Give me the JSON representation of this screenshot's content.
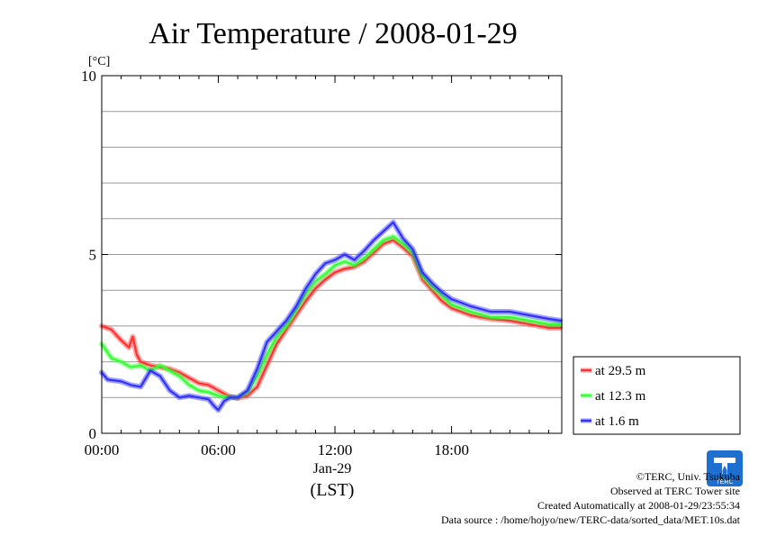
{
  "chart_data": {
    "type": "line",
    "title": "Air Temperature / 2008-01-29",
    "ylabel": "[°C]",
    "xlabel_date": "Jan-29",
    "xlabel_zone": "(LST)",
    "x_unit": "hours",
    "xlim": [
      0,
      23.67
    ],
    "ylim": [
      0,
      10
    ],
    "yticks": [
      0,
      5,
      10
    ],
    "ytick_labels": [
      "0",
      "5",
      "10"
    ],
    "xticks": [
      0,
      6,
      12,
      18
    ],
    "xtick_labels": [
      "00:00",
      "06:00",
      "12:00",
      "18:00"
    ],
    "grid": true,
    "legend_position": "right",
    "series": [
      {
        "name": "at 29.5 m",
        "color": "#ff3030",
        "x": [
          0,
          0.5,
          1,
          1.4,
          1.6,
          1.8,
          2,
          2.5,
          3,
          3.5,
          4,
          4.5,
          5,
          5.5,
          6,
          6.5,
          7,
          7.5,
          8,
          8.5,
          9,
          9.5,
          10,
          10.5,
          11,
          11.5,
          12,
          12.5,
          13,
          13.5,
          14,
          14.5,
          15,
          15.5,
          16,
          16.5,
          17,
          17.5,
          18,
          19,
          20,
          21,
          22,
          23,
          23.6
        ],
        "y": [
          3.0,
          2.9,
          2.6,
          2.4,
          2.7,
          2.2,
          2.0,
          1.9,
          1.85,
          1.8,
          1.7,
          1.55,
          1.4,
          1.35,
          1.2,
          1.05,
          0.98,
          1.05,
          1.3,
          1.9,
          2.5,
          2.9,
          3.3,
          3.7,
          4.05,
          4.3,
          4.5,
          4.6,
          4.65,
          4.8,
          5.05,
          5.3,
          5.4,
          5.2,
          4.95,
          4.3,
          4.0,
          3.7,
          3.5,
          3.3,
          3.2,
          3.15,
          3.05,
          2.95,
          2.95
        ]
      },
      {
        "name": "at 12.3 m",
        "color": "#30ff30",
        "x": [
          0,
          0.5,
          1,
          1.5,
          2,
          2.5,
          3,
          3.5,
          4,
          4.5,
          5,
          5.5,
          6,
          6.5,
          7,
          7.5,
          8,
          8.5,
          9,
          9.5,
          10,
          10.5,
          11,
          11.5,
          12,
          12.5,
          13,
          13.5,
          14,
          14.5,
          15,
          15.5,
          16,
          16.5,
          17,
          17.5,
          18,
          19,
          20,
          21,
          22,
          23,
          23.6
        ],
        "y": [
          2.5,
          2.1,
          2.0,
          1.85,
          1.9,
          1.75,
          1.9,
          1.75,
          1.6,
          1.35,
          1.2,
          1.15,
          1.05,
          1.0,
          1.0,
          1.15,
          1.6,
          2.2,
          2.7,
          3.0,
          3.45,
          3.9,
          4.25,
          4.45,
          4.7,
          4.8,
          4.7,
          4.9,
          5.15,
          5.4,
          5.5,
          5.3,
          5.05,
          4.4,
          4.1,
          3.85,
          3.6,
          3.4,
          3.25,
          3.25,
          3.15,
          3.05,
          3.05
        ]
      },
      {
        "name": "at 1.6 m",
        "color": "#3030ff",
        "x": [
          0,
          0.3,
          1,
          1.5,
          2,
          2.5,
          3,
          3.5,
          4,
          4.5,
          5,
          5.5,
          5.8,
          6,
          6.3,
          6.6,
          7,
          7.5,
          8,
          8.5,
          9,
          9.5,
          10,
          10.5,
          11,
          11.5,
          12,
          12.5,
          13,
          13.5,
          14,
          14.5,
          15,
          15.5,
          16,
          16.5,
          17,
          17.5,
          18,
          19,
          20,
          21,
          22,
          23,
          23.6
        ],
        "y": [
          1.7,
          1.5,
          1.45,
          1.35,
          1.3,
          1.75,
          1.6,
          1.2,
          1.0,
          1.05,
          1.0,
          0.95,
          0.75,
          0.65,
          0.9,
          1.0,
          1.0,
          1.2,
          1.8,
          2.55,
          2.85,
          3.15,
          3.55,
          4.05,
          4.45,
          4.75,
          4.85,
          5.0,
          4.85,
          5.1,
          5.4,
          5.65,
          5.9,
          5.45,
          5.15,
          4.5,
          4.2,
          3.95,
          3.75,
          3.55,
          3.4,
          3.4,
          3.3,
          3.2,
          3.15
        ]
      }
    ]
  },
  "credits": {
    "copyright": "©TERC, Univ. Tsukuba",
    "observed": "Observed at TERC Tower site",
    "created": "Created Automatically at 2008-01-29/23:55:34",
    "source": "Data source : /home/hojyo/new/TERC-data/sorted_data/MET.10s.dat"
  },
  "logo": {
    "text": "TERC",
    "color": "#1e6fd0"
  }
}
